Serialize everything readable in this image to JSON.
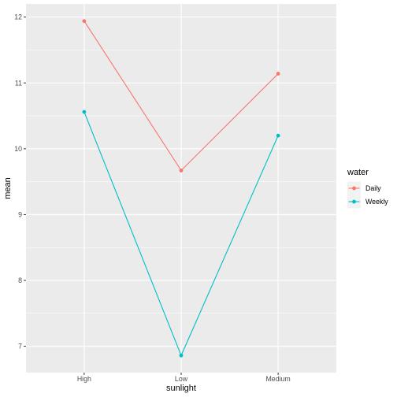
{
  "chart_data": {
    "type": "line",
    "xlabel": "sunlight",
    "ylabel": "mean",
    "categories": [
      "High",
      "Low",
      "Medium"
    ],
    "ylim": [
      6.6,
      12.2
    ],
    "yticks": [
      7,
      8,
      9,
      10,
      11,
      12
    ],
    "grid": true,
    "legend": {
      "title": "water",
      "position": "right"
    },
    "series": [
      {
        "name": "Daily",
        "color": "#F8766D",
        "values": [
          11.94,
          9.67,
          11.14
        ]
      },
      {
        "name": "Weekly",
        "color": "#00BFC4",
        "values": [
          10.56,
          6.86,
          10.2
        ]
      }
    ]
  }
}
